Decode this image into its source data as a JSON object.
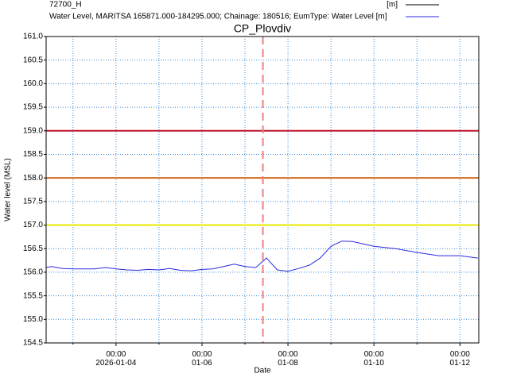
{
  "chart_data": {
    "type": "line",
    "title": "CP_Plovdiv",
    "ylabel": "Water level (MSL)",
    "xlabel": "Date",
    "series": [
      {
        "name": "72700_H",
        "unit": "[m]",
        "color": "#000000",
        "x": [],
        "values": []
      },
      {
        "name": "Water Level, MARITSA 165871.000-184295.000; Chainage: 180516; EumType: Water Level [m]",
        "color": "#2a2ae0",
        "x": [
          "2026-01-02T09:00",
          "2026-01-02T12:00",
          "2026-01-02T18:00",
          "2026-01-03T00:00",
          "2026-01-03T06:00",
          "2026-01-03T12:00",
          "2026-01-03T18:00",
          "2026-01-04T00:00",
          "2026-01-04T06:00",
          "2026-01-04T12:00",
          "2026-01-04T18:00",
          "2026-01-05T00:00",
          "2026-01-05T06:00",
          "2026-01-05T12:00",
          "2026-01-05T18:00",
          "2026-01-06T00:00",
          "2026-01-06T06:00",
          "2026-01-06T12:00",
          "2026-01-06T18:00",
          "2026-01-07T00:00",
          "2026-01-07T06:00",
          "2026-01-07T12:00",
          "2026-01-07T18:00",
          "2026-01-08T00:00",
          "2026-01-08T06:00",
          "2026-01-08T12:00",
          "2026-01-08T18:00",
          "2026-01-09T00:00",
          "2026-01-09T06:00",
          "2026-01-09T12:00",
          "2026-01-09T18:00",
          "2026-01-10T00:00",
          "2026-01-10T12:00",
          "2026-01-11T00:00",
          "2026-01-11T12:00",
          "2026-01-12T00:00",
          "2026-01-12T10:00"
        ],
        "values": [
          156.1,
          156.12,
          156.08,
          156.07,
          156.07,
          156.07,
          156.1,
          156.07,
          156.05,
          156.04,
          156.06,
          156.05,
          156.08,
          156.04,
          156.03,
          156.06,
          156.07,
          156.12,
          156.17,
          156.12,
          156.1,
          156.3,
          156.05,
          156.02,
          156.08,
          156.15,
          156.3,
          156.55,
          156.66,
          156.65,
          156.6,
          156.55,
          156.5,
          156.42,
          156.35,
          156.35,
          156.3
        ]
      }
    ],
    "hlines": [
      {
        "value": 159,
        "color": "#c0142c"
      },
      {
        "value": 158,
        "color": "#d2691e"
      },
      {
        "value": 157,
        "color": "#e8e800"
      }
    ],
    "vlines": [
      {
        "value": "2026-01-07T10:00",
        "color": "#f08080"
      }
    ],
    "xlim": [
      "2026-01-02T09:00",
      "2026-01-12T10:30"
    ],
    "xticks": [
      {
        "value": "2026-01-04T00:00",
        "label": "00:00\n2026-01-04"
      },
      {
        "value": "2026-01-06T00:00",
        "label": "00:00\n01-06"
      },
      {
        "value": "2026-01-08T00:00",
        "label": "00:00\n01-08"
      },
      {
        "value": "2026-01-10T00:00",
        "label": "00:00\n01-10"
      },
      {
        "value": "2026-01-12T00:00",
        "label": "00:00\n01-12"
      }
    ],
    "xminor": [
      "2026-01-03T00:00",
      "2026-01-05T00:00",
      "2026-01-07T00:00",
      "2026-01-09T00:00",
      "2026-01-11T00:00"
    ],
    "ylim": [
      154.5,
      161
    ],
    "yticks": [
      154.5,
      {
        "value": 155,
        "label": "155.0"
      },
      155.5,
      {
        "value": 156,
        "label": "156.0"
      },
      156.5,
      {
        "value": 157,
        "label": "157.0"
      },
      157.5,
      {
        "value": 158,
        "label": "158.0"
      },
      158.5,
      {
        "value": 159,
        "label": "159.0"
      },
      159.5,
      {
        "value": 160,
        "label": "160.0"
      },
      160.5,
      {
        "value": 161,
        "label": "161.0"
      }
    ],
    "grid": true
  }
}
